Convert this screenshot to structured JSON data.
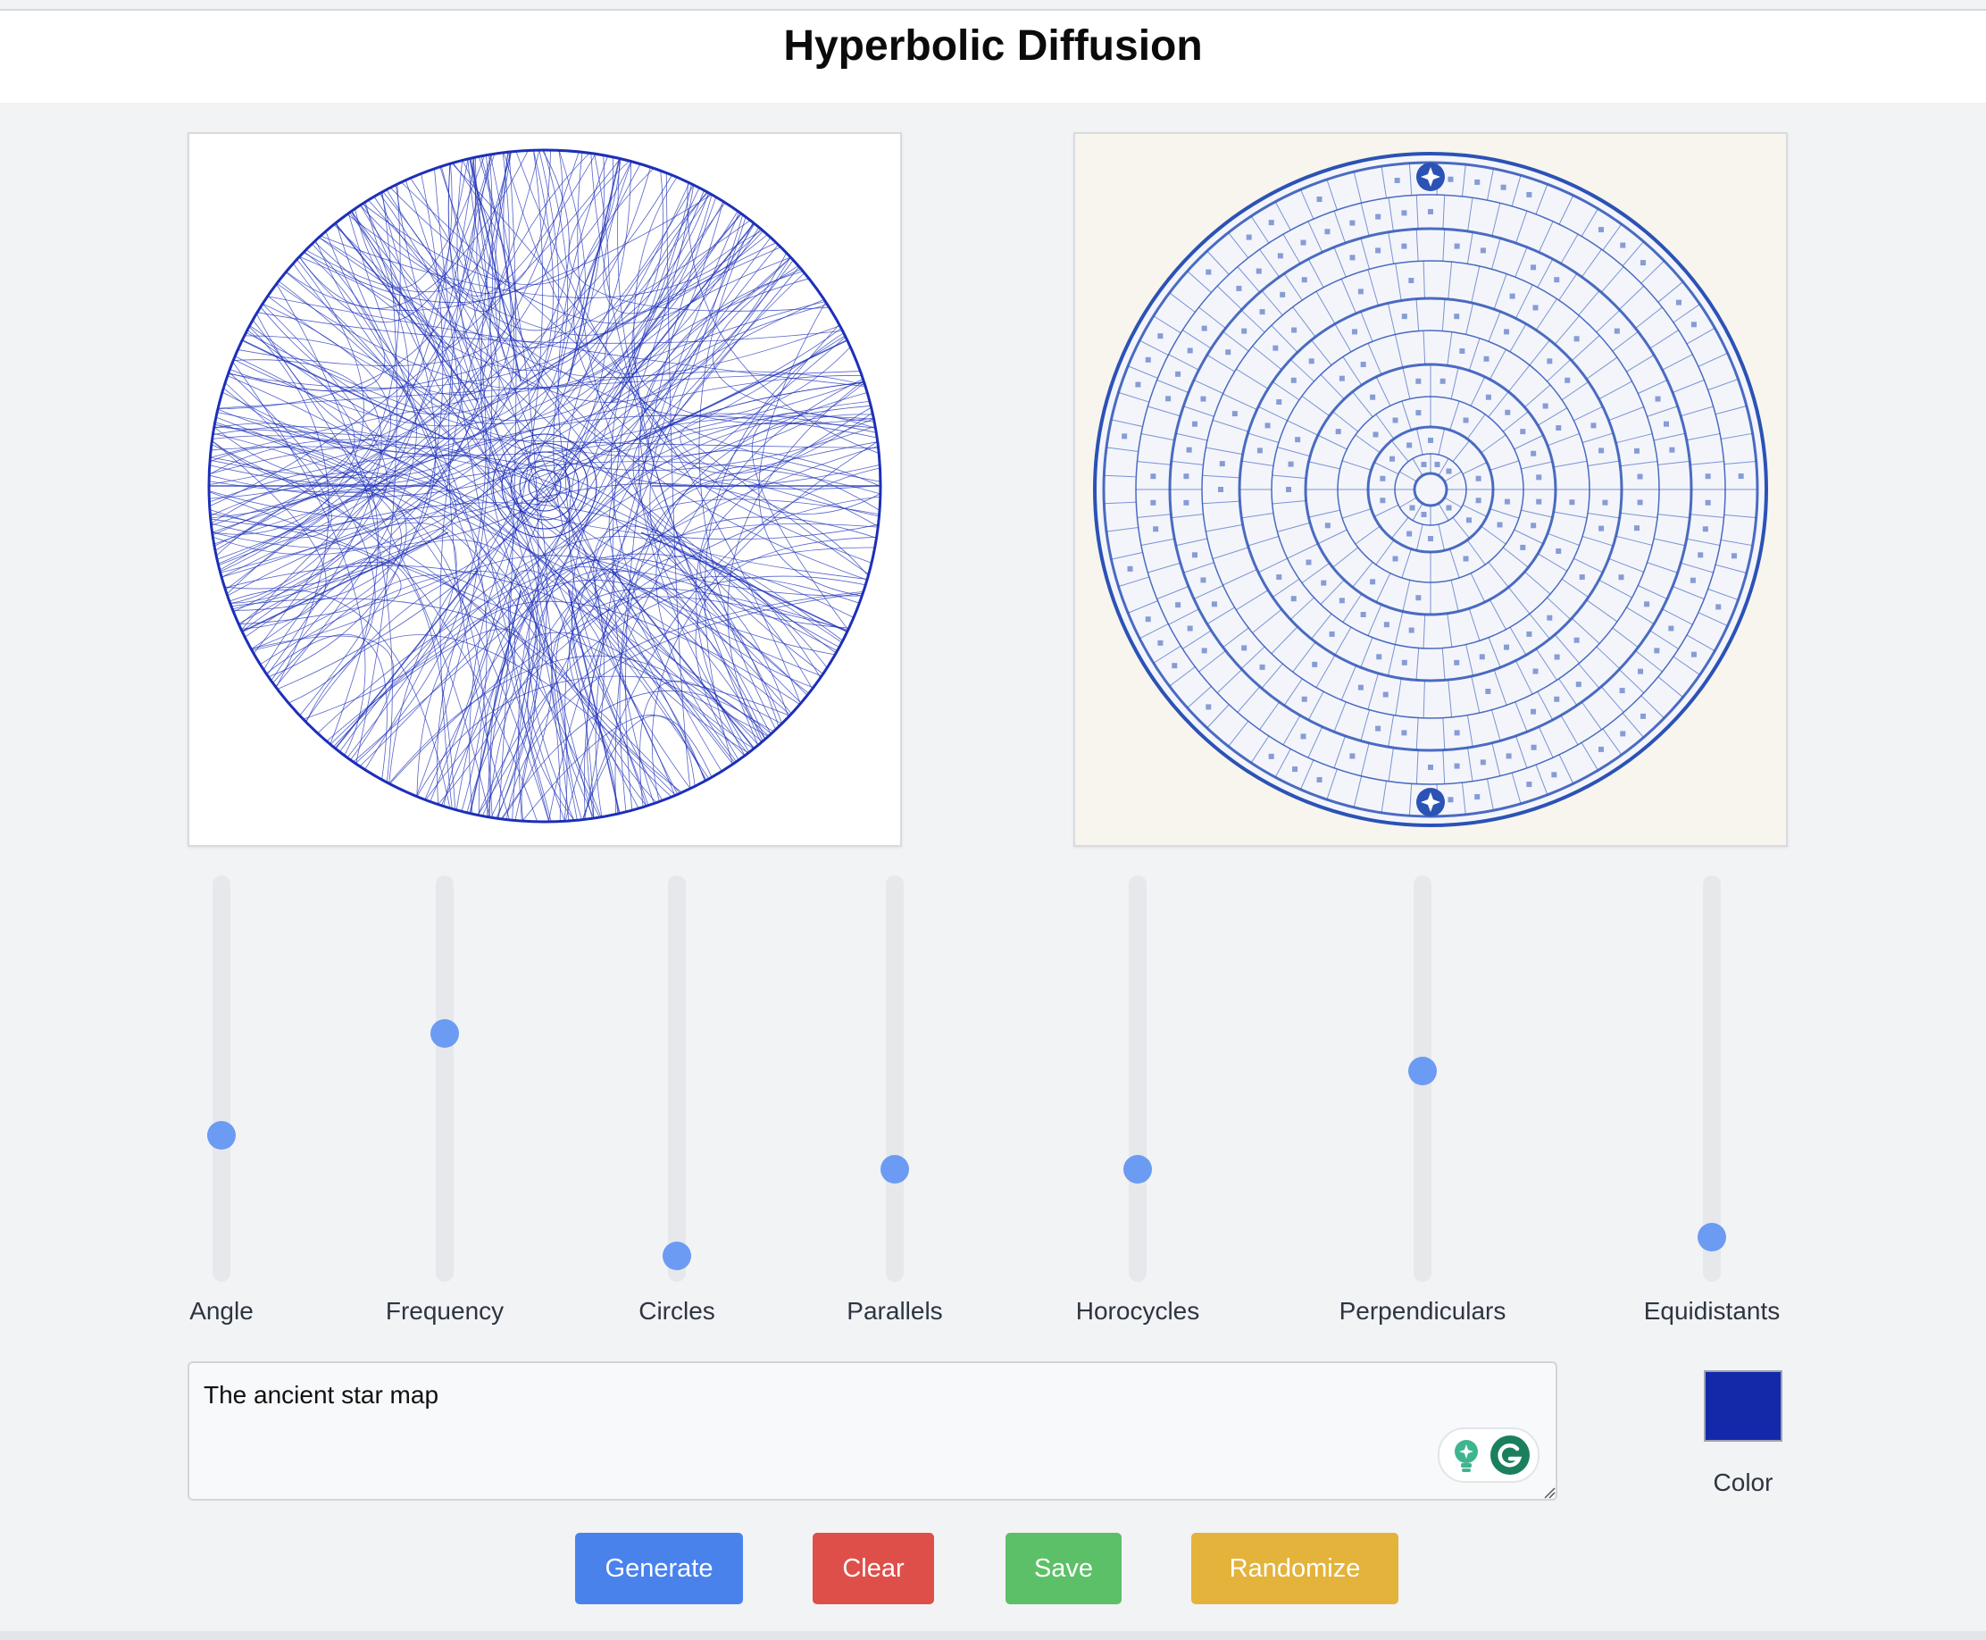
{
  "header": {
    "title": "Hyperbolic Diffusion"
  },
  "images": {
    "left": {
      "icon": "hyperbolic-pattern-image",
      "stroke_color": "#1c2fb8"
    },
    "right": {
      "icon": "generated-star-map-image",
      "stroke_color": "#2b52b5"
    }
  },
  "sliders": [
    {
      "label": "Angle",
      "value": 0.35
    },
    {
      "label": "Frequency",
      "value": 0.62
    },
    {
      "label": "Circles",
      "value": 0.03
    },
    {
      "label": "Parallels",
      "value": 0.26
    },
    {
      "label": "Horocycles",
      "value": 0.26
    },
    {
      "label": "Perpendiculars",
      "value": 0.52
    },
    {
      "label": "Equidistants",
      "value": 0.08
    }
  ],
  "prompt": {
    "value": "The ancient star map"
  },
  "color": {
    "label": "Color",
    "value": "#1429aa"
  },
  "buttons": {
    "generate": "Generate",
    "clear": "Clear",
    "save": "Save",
    "randomize": "Randomize"
  },
  "colors": {
    "generate": "#4a82ec",
    "clear": "#df4f4a",
    "save": "#5cc068",
    "randomize": "#e3b33b",
    "slider_thumb": "#6b9bf3"
  }
}
